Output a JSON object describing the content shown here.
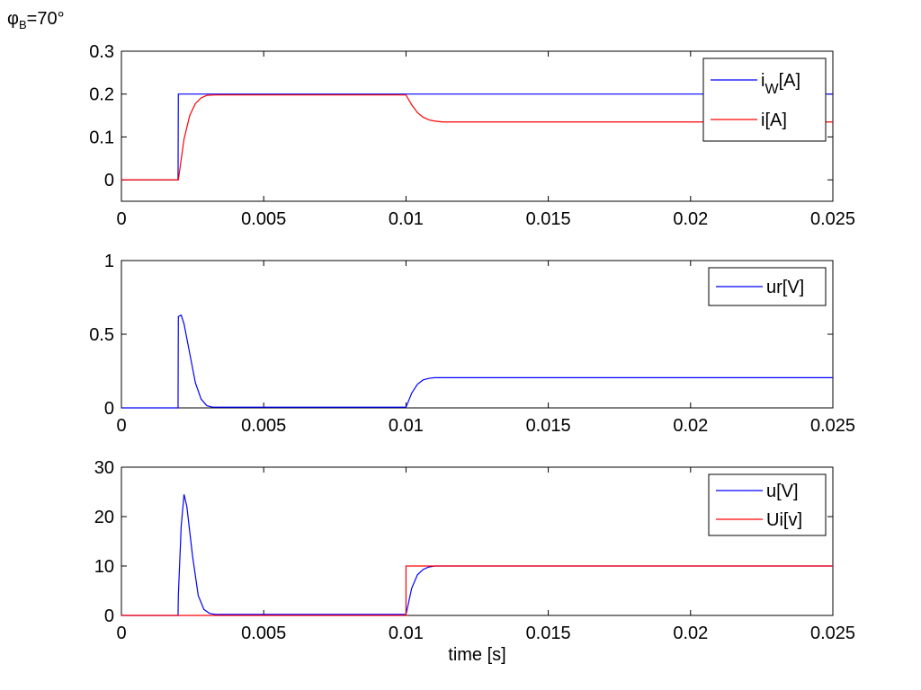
{
  "annotation": {
    "symbol": "φ",
    "subscript": "B",
    "text": "=70°"
  },
  "chart_data": [
    {
      "type": "line",
      "xlim": [
        0,
        0.025
      ],
      "ylim": [
        -0.05,
        0.3
      ],
      "xticks": [
        "0",
        "0.005",
        "0.01",
        "0.015",
        "0.02",
        "0.025"
      ],
      "xtick_values": [
        0,
        0.005,
        0.01,
        0.015,
        0.02,
        0.025
      ],
      "yticks": [
        "0",
        "0.1",
        "0.2",
        "0.3"
      ],
      "ytick_values": [
        0,
        0.1,
        0.2,
        0.3
      ],
      "xlabel": "",
      "legend_position": "top-right",
      "series": [
        {
          "name": "i",
          "name_sub": "W",
          "name_suffix": "[A]",
          "color": "#0000ff",
          "x": [
            0,
            0.00199,
            0.002,
            0.01,
            0.025
          ],
          "y": [
            0,
            0,
            0.2,
            0.2,
            0.2
          ]
        },
        {
          "name": "i[A]",
          "color": "#ff0000",
          "x": [
            0,
            0.002,
            0.0022,
            0.0024,
            0.0026,
            0.0028,
            0.003,
            0.0033,
            0.01,
            0.0102,
            0.0104,
            0.0106,
            0.0108,
            0.011,
            0.0113,
            0.025
          ],
          "y": [
            0,
            0,
            0.095,
            0.15,
            0.178,
            0.191,
            0.197,
            0.198,
            0.198,
            0.175,
            0.157,
            0.146,
            0.14,
            0.137,
            0.135,
            0.135
          ]
        }
      ]
    },
    {
      "type": "line",
      "xlim": [
        0,
        0.025
      ],
      "ylim": [
        0,
        1
      ],
      "xticks": [
        "0",
        "0.005",
        "0.01",
        "0.015",
        "0.02",
        "0.025"
      ],
      "xtick_values": [
        0,
        0.005,
        0.01,
        0.015,
        0.02,
        0.025
      ],
      "yticks": [
        "0",
        "0.5",
        "1"
      ],
      "ytick_values": [
        0,
        0.5,
        1
      ],
      "xlabel": "",
      "legend_position": "top-right",
      "series": [
        {
          "name": "ur[V]",
          "color": "#0000ff",
          "x": [
            0,
            0.00199,
            0.002,
            0.0021,
            0.0022,
            0.0024,
            0.0026,
            0.0028,
            0.003,
            0.0032,
            0.01,
            0.0102,
            0.0104,
            0.0106,
            0.0108,
            0.011,
            0.025
          ],
          "y": [
            0,
            0,
            0.62,
            0.63,
            0.57,
            0.37,
            0.17,
            0.06,
            0.015,
            0.005,
            0.005,
            0.1,
            0.16,
            0.19,
            0.2,
            0.205,
            0.205
          ]
        }
      ]
    },
    {
      "type": "line",
      "xlim": [
        0,
        0.025
      ],
      "ylim": [
        0,
        30
      ],
      "xticks": [
        "0",
        "0.005",
        "0.01",
        "0.015",
        "0.02",
        "0.025"
      ],
      "xtick_values": [
        0,
        0.005,
        0.01,
        0.015,
        0.02,
        0.025
      ],
      "yticks": [
        "0",
        "10",
        "20",
        "30"
      ],
      "ytick_values": [
        0,
        10,
        20,
        30
      ],
      "xlabel": "time [s]",
      "legend_position": "top-right",
      "series": [
        {
          "name": "u[V]",
          "color": "#0000ff",
          "x": [
            0,
            0.00199,
            0.002,
            0.0021,
            0.0022,
            0.0023,
            0.0025,
            0.0027,
            0.0029,
            0.0031,
            0.0033,
            0.01,
            0.0102,
            0.0104,
            0.0106,
            0.0108,
            0.011,
            0.025
          ],
          "y": [
            0,
            0,
            4,
            18,
            24.5,
            22,
            12,
            4,
            1.2,
            0.4,
            0.2,
            0.2,
            5.5,
            8.2,
            9.3,
            9.8,
            10,
            10
          ]
        },
        {
          "name": "Ui[v]",
          "color": "#ff0000",
          "x": [
            0,
            0.01,
            0.01,
            0.025
          ],
          "y": [
            0,
            0,
            10,
            10
          ]
        }
      ]
    }
  ]
}
